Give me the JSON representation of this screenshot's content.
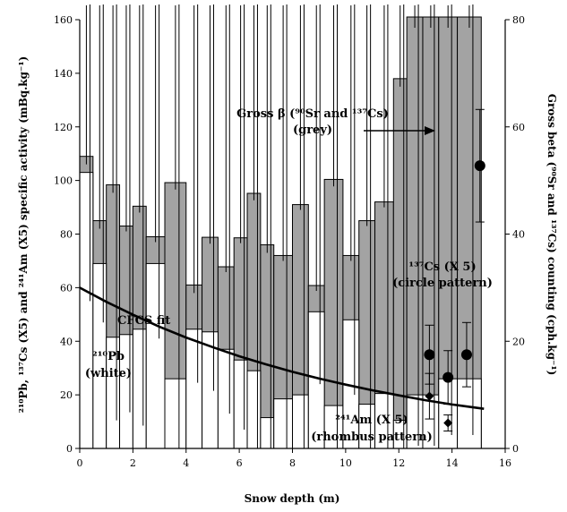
{
  "chart_data": {
    "type": "bar",
    "xlabel": "Snow depth (m)",
    "ylabel_left": "²¹⁰Pb, ¹³⁷Cs (X5) and ²⁴¹Am (X5) specific activity (mBq.kg⁻¹)",
    "ylabel_right": "Gross beta (⁹⁰Sr and ¹³⁷Cs) counting (cph.kg⁻¹)",
    "xlim": [
      0,
      16
    ],
    "ylim_left": [
      0,
      160
    ],
    "ylim_right": [
      0,
      80
    ],
    "x_ticks": [
      "0",
      "2",
      "4",
      "6",
      "8",
      "10",
      "12",
      "14",
      "16"
    ],
    "y_left_ticks": [
      "0",
      "20",
      "40",
      "60",
      "80",
      "100",
      "120",
      "140",
      "160"
    ],
    "y_right_ticks": [
      "0",
      "20",
      "40",
      "60",
      "80"
    ],
    "layers": [
      {
        "top": 0.5,
        "bottom": 0.0
      },
      {
        "top": 1.0,
        "bottom": 0.5
      },
      {
        "top": 1.5,
        "bottom": 1.0
      },
      {
        "top": 2.0,
        "bottom": 1.5
      },
      {
        "top": 2.5,
        "bottom": 2.0
      },
      {
        "top": 3.2,
        "bottom": 2.5
      },
      {
        "top": 4.0,
        "bottom": 3.2
      },
      {
        "top": 4.6,
        "bottom": 4.0
      },
      {
        "top": 5.2,
        "bottom": 4.6
      },
      {
        "top": 5.8,
        "bottom": 5.2
      },
      {
        "top": 6.3,
        "bottom": 5.8
      },
      {
        "top": 6.8,
        "bottom": 6.3
      },
      {
        "top": 7.3,
        "bottom": 6.8
      },
      {
        "top": 8.0,
        "bottom": 7.3
      },
      {
        "top": 8.6,
        "bottom": 8.0
      },
      {
        "top": 9.2,
        "bottom": 8.6
      },
      {
        "top": 9.9,
        "bottom": 9.2
      },
      {
        "top": 10.5,
        "bottom": 9.9
      },
      {
        "top": 11.1,
        "bottom": 10.5
      },
      {
        "top": 11.8,
        "bottom": 11.1
      },
      {
        "top": 12.3,
        "bottom": 11.8
      },
      {
        "top": 12.9,
        "bottom": 12.3
      },
      {
        "top": 13.5,
        "bottom": 12.9
      },
      {
        "top": 14.2,
        "bottom": 13.5
      },
      {
        "top": 15.1,
        "bottom": 14.2
      }
    ],
    "series": [
      {
        "key": "gross_beta",
        "axis": "right",
        "style": "grey-step",
        "values": [
          54.5,
          42.5,
          49.2,
          41.5,
          45.2,
          39.5,
          49.6,
          30.5,
          39.4,
          33.9,
          39.3,
          47.6,
          38.0,
          36.0,
          45.5,
          30.4,
          50.2,
          36.0,
          42.5,
          46.0,
          69.0,
          80.5,
          80.5,
          80.5,
          80.5
        ],
        "errors": [
          1.5,
          1.5,
          1.5,
          1.0,
          1.2,
          1.0,
          1.3,
          1.5,
          1.2,
          1.0,
          1.0,
          1.3,
          1.5,
          1.0,
          1.0,
          1.0,
          1.3,
          1.0,
          1.0,
          1.0,
          1.5,
          2.0,
          2.0,
          2.0,
          2.0
        ]
      },
      {
        "key": "pb210",
        "axis": "left",
        "style": "white-step",
        "values": [
          103,
          69,
          41.5,
          42.5,
          44.5,
          69,
          26,
          44.5,
          43.5,
          37,
          33,
          29,
          11.5,
          18.5,
          20,
          51,
          16,
          48,
          16.5,
          20.5,
          10.5,
          20,
          20,
          26,
          26
        ],
        "errors": [
          48,
          22,
          31,
          29,
          36,
          28,
          33,
          20,
          22,
          24,
          26,
          30,
          28,
          23,
          22,
          27,
          20,
          28,
          26,
          28,
          20,
          19,
          19,
          21,
          21
        ]
      },
      {
        "key": "cs137_x5",
        "style": "circle",
        "points": [
          {
            "x": 13.15,
            "y": 35,
            "err": 11
          },
          {
            "x": 13.85,
            "y": 26.5,
            "err": 10
          },
          {
            "x": 14.55,
            "y": 35,
            "err": 12
          },
          {
            "x": 15.05,
            "y": 105.5,
            "err": 21
          }
        ]
      },
      {
        "key": "am241_x5",
        "style": "rhombus",
        "points": [
          {
            "x": 13.15,
            "y": 19.5,
            "err": 8.5
          },
          {
            "x": 13.85,
            "y": 9.5,
            "err": 3
          }
        ]
      },
      {
        "key": "cfcs_fit",
        "style": "curve",
        "x": [
          0,
          1,
          2,
          3,
          4,
          5,
          6,
          7,
          8,
          9,
          10,
          11,
          12,
          13,
          14,
          15.2
        ],
        "y": [
          60,
          54.7,
          49.9,
          45.4,
          41.4,
          37.8,
          34.4,
          31.4,
          28.6,
          26.1,
          23.8,
          21.7,
          19.8,
          18.0,
          16.4,
          14.8
        ]
      }
    ],
    "annotations": {
      "gross_beta_label_1": "Gross β (⁹⁰Sr and ¹³⁷Cs)",
      "gross_beta_label_2": "(grey)",
      "cs_label_1": "¹³⁷Cs (X 5)",
      "cs_label_2": "(circle pattern)",
      "cfcs_label": "CFCS fit",
      "pb_label_1": "²¹⁰Pb",
      "pb_label_2": "(white)",
      "am_label_1": "²⁴¹Am (X 5)",
      "am_label_2": "(rhombus pattern)"
    },
    "colors": {
      "grey_fill": "#a3a3a3",
      "white_fill": "#ffffff",
      "line": "#000000"
    }
  }
}
